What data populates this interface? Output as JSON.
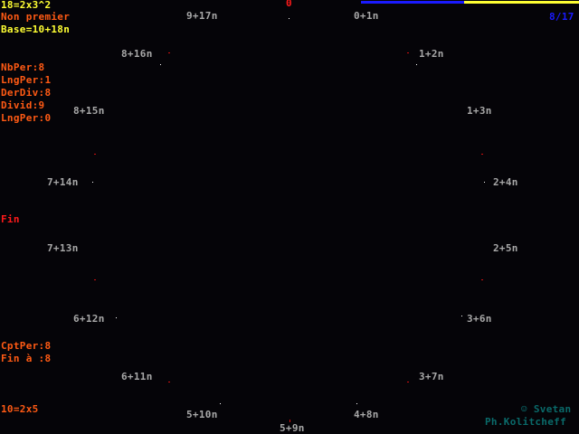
{
  "header": {
    "factorization": "18=2x3^2",
    "primality": "Non premier",
    "base": "Base=10+18n",
    "zero": "0",
    "counter": "8/17",
    "progress": {
      "value": 8,
      "total": 17,
      "fill_color": "#1a1aff",
      "rest_color": "#ffff33"
    }
  },
  "stats": {
    "nbper": "NbPer:8",
    "lngper1": "LngPer:1",
    "derdiv": "DerDiv:8",
    "divid": "Divid:9",
    "lngper0": "LngPer:0",
    "fin": "Fin",
    "cptper": "CptPer:8",
    "fin_a": "Fin à :8",
    "bottom_fact": "10=2x5"
  },
  "circle_labels": [
    "0+1n",
    "1+2n",
    "1+3n",
    "2+4n",
    "2+5n",
    "3+6n",
    "3+7n",
    "4+8n",
    "5+9n",
    "5+10n",
    "6+11n",
    "6+12n",
    "7+13n",
    "7+14n",
    "8+15n",
    "8+16n",
    "9+17n"
  ],
  "credits": {
    "author1": "☺ Svetan",
    "author2": "Ph.Kolitcheff"
  }
}
